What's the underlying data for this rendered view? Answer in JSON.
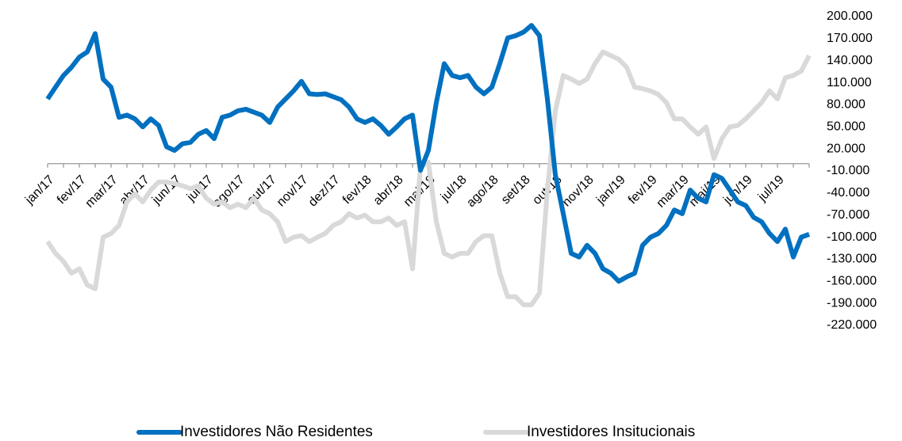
{
  "chart_data": {
    "type": "line",
    "categories": [
      "jan/17",
      null,
      null,
      null,
      "fev/17",
      null,
      null,
      null,
      "mar/17",
      null,
      null,
      null,
      "abr/17",
      null,
      null,
      null,
      "jun/17",
      null,
      null,
      null,
      "jul/17",
      null,
      null,
      null,
      "ago/17",
      null,
      null,
      null,
      "out/17",
      null,
      null,
      null,
      "nov/17",
      null,
      null,
      null,
      "dez/17",
      null,
      null,
      null,
      "fev/18",
      null,
      null,
      null,
      "abr/18",
      null,
      null,
      null,
      "mai/18",
      null,
      null,
      null,
      "jul/18",
      null,
      null,
      null,
      "ago/18",
      null,
      null,
      null,
      "set/18",
      null,
      null,
      null,
      "out/18",
      null,
      null,
      null,
      "nov/18",
      null,
      null,
      null,
      "jan/19",
      null,
      null,
      null,
      "fev/19",
      null,
      null,
      null,
      "mar/19",
      null,
      null,
      null,
      "mai/19",
      null,
      null,
      null,
      "jun/19",
      null,
      null,
      null,
      "jul/19",
      null,
      null,
      null,
      null
    ],
    "series": [
      {
        "name": "Investidores Não Residentes",
        "color": "#0070c0",
        "values": [
          88000,
          104000,
          120000,
          131000,
          145000,
          152000,
          177000,
          115000,
          104000,
          63000,
          66000,
          61000,
          50000,
          61000,
          52000,
          23000,
          18000,
          27000,
          29000,
          40000,
          45000,
          34000,
          63000,
          66000,
          72000,
          74000,
          70000,
          66000,
          56000,
          77000,
          88000,
          99000,
          112000,
          95000,
          94000,
          95000,
          91000,
          87000,
          77000,
          61000,
          56000,
          61000,
          52000,
          40000,
          50000,
          61000,
          66000,
          -9000,
          18000,
          83000,
          136000,
          120000,
          117000,
          120000,
          104000,
          95000,
          104000,
          136000,
          171000,
          174000,
          179000,
          188000,
          174000,
          88000,
          -15000,
          -68000,
          -122000,
          -127000,
          -111000,
          -122000,
          -143000,
          -149000,
          -160000,
          -154000,
          -149000,
          -111000,
          -100000,
          -95000,
          -84000,
          -63000,
          -68000,
          -36000,
          -47000,
          -52000,
          -15000,
          -20000,
          -36000,
          -52000,
          -57000,
          -73000,
          -79000,
          -95000,
          -106000,
          -89000,
          -127000,
          -100000,
          -96000
        ]
      },
      {
        "name": "Investidores Insitucionais",
        "color": "#d9d9d9",
        "values": [
          -106000,
          -122000,
          -133000,
          -149000,
          -143000,
          -165000,
          -170000,
          -100000,
          -95000,
          -84000,
          -52000,
          -41000,
          -52000,
          -36000,
          -25000,
          -25000,
          -27000,
          -30000,
          -34000,
          -30000,
          -47000,
          -55000,
          -52000,
          -60000,
          -55000,
          -60000,
          -47000,
          -63000,
          -68000,
          -79000,
          -106000,
          -100000,
          -98000,
          -106000,
          -100000,
          -95000,
          -84000,
          -79000,
          -68000,
          -74000,
          -70000,
          -79000,
          -79000,
          -74000,
          -84000,
          -79000,
          -143000,
          -4000,
          2000,
          -79000,
          -122000,
          -127000,
          -122000,
          -122000,
          -106000,
          -98000,
          -98000,
          -149000,
          -181000,
          -181000,
          -192000,
          -192000,
          -176000,
          -36000,
          72000,
          120000,
          115000,
          109000,
          115000,
          136000,
          152000,
          147000,
          142000,
          131000,
          104000,
          102000,
          99000,
          94000,
          83000,
          61000,
          61000,
          50000,
          40000,
          50000,
          7000,
          34000,
          50000,
          52000,
          61000,
          72000,
          83000,
          99000,
          88000,
          117000,
          120000,
          126000,
          147000
        ]
      }
    ],
    "ylim": [
      -220000,
      200000
    ],
    "yticks": [
      {
        "value": 200000,
        "label": "200.000"
      },
      {
        "value": 170000,
        "label": "170.000"
      },
      {
        "value": 140000,
        "label": "140.000"
      },
      {
        "value": 110000,
        "label": "110.000"
      },
      {
        "value": 80000,
        "label": "80.000"
      },
      {
        "value": 50000,
        "label": "50.000"
      },
      {
        "value": 20000,
        "label": "20.000"
      },
      {
        "value": -10000,
        "label": "-10.000"
      },
      {
        "value": -40000,
        "label": "-40.000"
      },
      {
        "value": -70000,
        "label": "-70.000"
      },
      {
        "value": -100000,
        "label": "-100.000"
      },
      {
        "value": -130000,
        "label": "-130.000"
      },
      {
        "value": -160000,
        "label": "-160.000"
      },
      {
        "value": -190000,
        "label": "-190.000"
      },
      {
        "value": -220000,
        "label": "-220.000"
      }
    ],
    "legend": "bottom"
  }
}
